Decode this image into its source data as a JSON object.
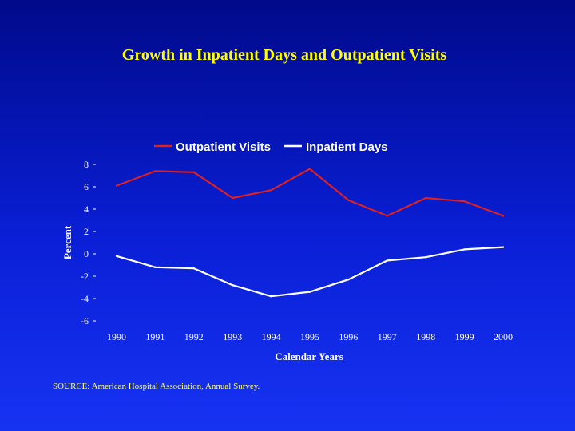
{
  "slide": {
    "title": "Growth in Inpatient Days and Outpatient Visits",
    "source": "SOURCE:  American Hospital Association, Annual Survey."
  },
  "chart_data": {
    "type": "line",
    "title": "",
    "xlabel": "Calendar Years",
    "ylabel": "Percent",
    "ylim": [
      -6,
      8
    ],
    "yticks": [
      8,
      6,
      4,
      2,
      0,
      -2,
      -4,
      -6
    ],
    "grid": false,
    "legend_position": "top",
    "categories": [
      "1990",
      "1991",
      "1992",
      "1993",
      "1994",
      "1995",
      "1996",
      "1997",
      "1998",
      "1999",
      "2000"
    ],
    "series": [
      {
        "name": "Outpatient Visits",
        "color": "#dd2020",
        "values": [
          6.1,
          7.4,
          7.3,
          5.0,
          5.7,
          7.6,
          4.8,
          3.4,
          5.0,
          4.7,
          3.4
        ]
      },
      {
        "name": "Inpatient Days",
        "color": "#ffffff",
        "values": [
          -0.2,
          -1.2,
          -1.3,
          -2.8,
          -3.8,
          -3.4,
          -2.3,
          -0.6,
          -0.3,
          0.4,
          0.6
        ]
      }
    ]
  }
}
